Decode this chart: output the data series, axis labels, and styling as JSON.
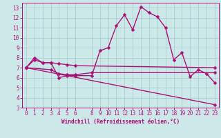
{
  "xlabel": "Windchill (Refroidissement éolien,°C)",
  "bg_color": "#cce8e8",
  "grid_color": "#aacfcf",
  "line_color": "#aa1177",
  "xlim": [
    -0.5,
    23.5
  ],
  "ylim": [
    3,
    13.5
  ],
  "xticks": [
    0,
    1,
    2,
    3,
    4,
    5,
    6,
    8,
    9,
    10,
    11,
    12,
    13,
    14,
    15,
    16,
    17,
    18,
    19,
    20,
    21,
    22,
    23
  ],
  "yticks": [
    3,
    4,
    5,
    6,
    7,
    8,
    9,
    10,
    11,
    12,
    13
  ],
  "series1_x": [
    0,
    1,
    2,
    3,
    4,
    5,
    6,
    8,
    9,
    10,
    11,
    12,
    13,
    14,
    15,
    16,
    17,
    18,
    19,
    20,
    21,
    22,
    23
  ],
  "series1_y": [
    7.0,
    8.0,
    7.5,
    7.5,
    6.0,
    6.2,
    6.2,
    6.2,
    8.7,
    9.0,
    11.2,
    12.3,
    10.8,
    13.1,
    12.5,
    12.1,
    11.0,
    7.8,
    8.5,
    6.1,
    6.8,
    6.4,
    5.5
  ],
  "series2_x": [
    0,
    1,
    2,
    3,
    4,
    5,
    6,
    23
  ],
  "series2_y": [
    7.0,
    7.8,
    7.5,
    7.5,
    7.4,
    7.3,
    7.2,
    7.0
  ],
  "series3_x": [
    0,
    3,
    4,
    5,
    6,
    8,
    23
  ],
  "series3_y": [
    7.0,
    6.8,
    6.4,
    6.3,
    6.3,
    6.5,
    6.5
  ],
  "series4_x": [
    0,
    23
  ],
  "series4_y": [
    7.0,
    3.3
  ],
  "markersize": 2.5,
  "linewidth": 1.0,
  "tick_fontsize": 5.5,
  "xlabel_fontsize": 5.5
}
